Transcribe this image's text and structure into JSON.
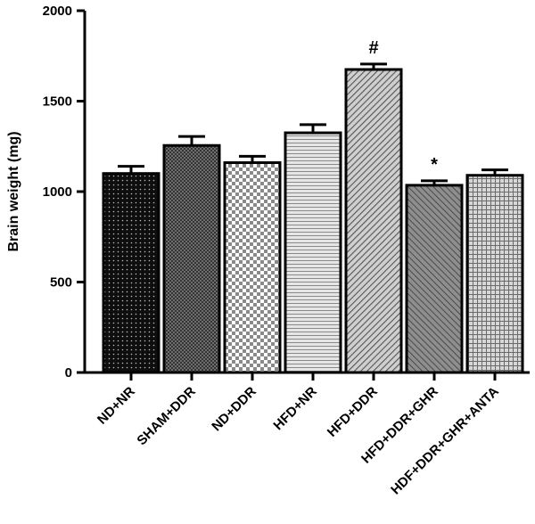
{
  "chart_data": {
    "type": "bar",
    "title": "",
    "xlabel": "",
    "ylabel": "Brain weight (mg)",
    "ylim": [
      0,
      2000
    ],
    "yticks": [
      0,
      500,
      1000,
      1500,
      2000
    ],
    "grid": false,
    "legend": "none",
    "categories": [
      "ND+NR",
      "SHAM+DDR",
      "ND+DDR",
      "HFD+NR",
      "HFD+DDR",
      "HFD+DDR+GHR",
      "HDF+DDR+GHR+ANTA"
    ],
    "values": [
      1100,
      1255,
      1160,
      1325,
      1675,
      1035,
      1090
    ],
    "errors": [
      40,
      50,
      35,
      45,
      30,
      25,
      30
    ],
    "annotations": [
      "",
      "",
      "",
      "",
      "#",
      "*",
      ""
    ],
    "patterns": [
      "dots-dark",
      "checker-dark",
      "checker-light",
      "hlines",
      "diag-dense",
      "diag-gray",
      "grid-light"
    ]
  }
}
